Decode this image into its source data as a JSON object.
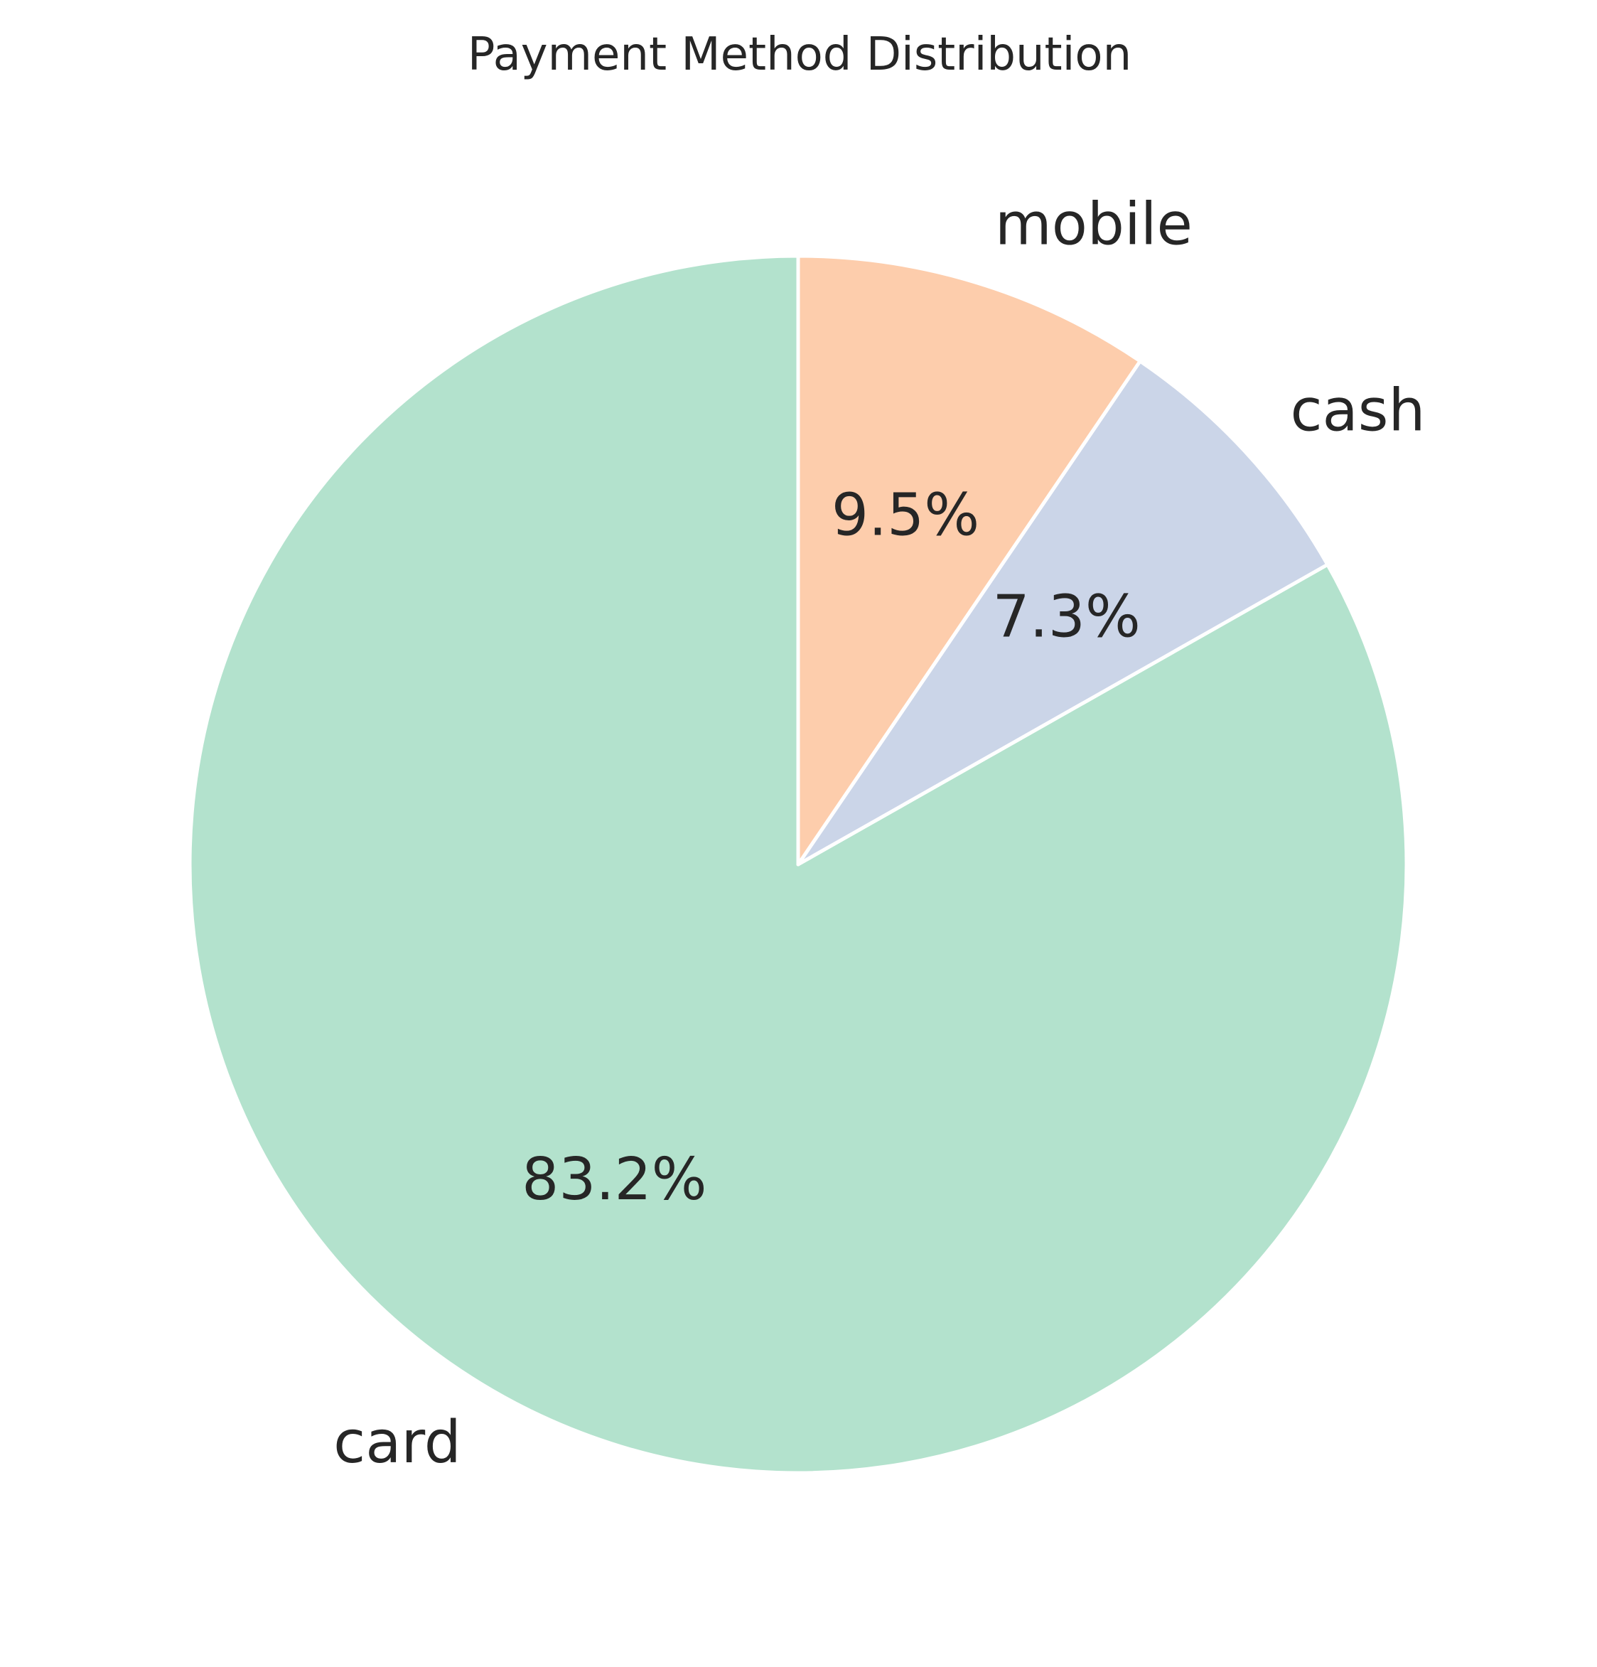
{
  "chart_data": {
    "type": "pie",
    "title": "Payment Method Distribution",
    "start_angle_deg": 90,
    "direction": "counterclockwise",
    "slices": [
      {
        "name": "card",
        "percent": 83.2,
        "label": "card",
        "pct_label": "83.2%",
        "color": "#b3e2cd"
      },
      {
        "name": "cash",
        "percent": 7.3,
        "label": "cash",
        "pct_label": "7.3%",
        "color": "#cbd5e8"
      },
      {
        "name": "mobile",
        "percent": 9.5,
        "label": "mobile",
        "pct_label": "9.5%",
        "color": "#fdcdac"
      }
    ],
    "edge_color": "#ffffff"
  }
}
